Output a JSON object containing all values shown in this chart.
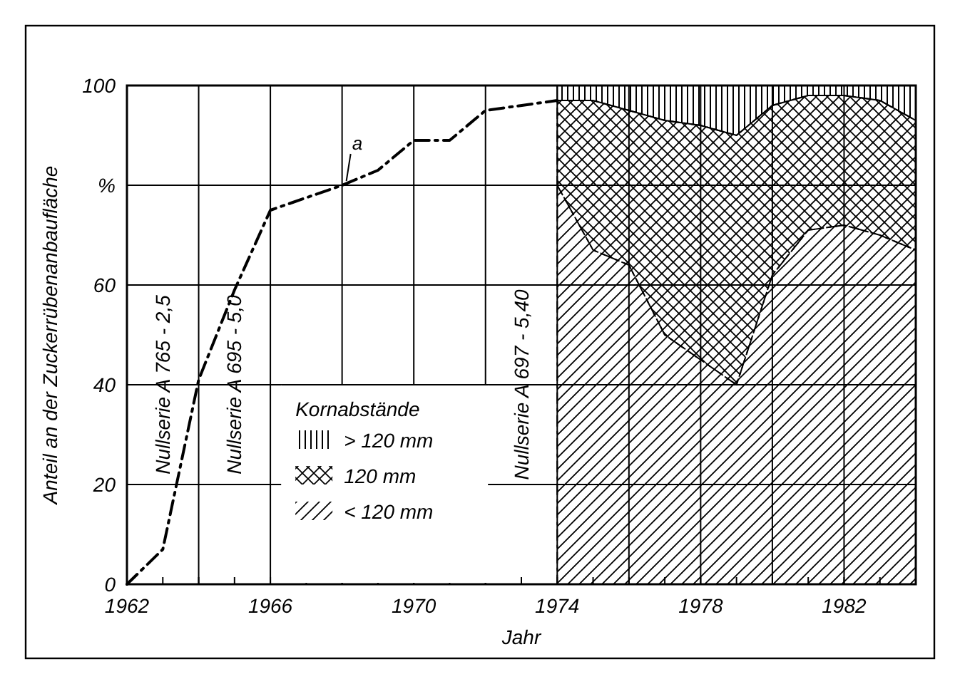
{
  "chart_data": {
    "type": "area",
    "stacked": true,
    "xlabel": "Jahr",
    "ylabel": "Anteil an der Zuckerrübenanbaufläche",
    "legend_title": "Kornabstände",
    "legend": "bottom",
    "grid": true,
    "xlim": [
      1962,
      1984
    ],
    "ylim": [
      0,
      100
    ],
    "xticks": [
      1962,
      {
        "value": 1964,
        "label": null
      },
      1966,
      {
        "value": 1968,
        "label": null
      },
      1970,
      {
        "value": 1972,
        "label": null
      },
      1974,
      {
        "value": 1976,
        "label": null
      },
      1978,
      {
        "value": 1980,
        "label": null
      },
      1982,
      {
        "value": 1984,
        "label": null
      }
    ],
    "yticks": [
      0,
      20,
      40,
      60,
      {
        "value": 80,
        "label": "%"
      },
      100
    ],
    "x": [
      1974,
      1975,
      1976,
      1977,
      1978,
      1979,
      1980,
      1981,
      1982,
      1983,
      1984
    ],
    "series": [
      {
        "name": "< 120 mm",
        "color": "#000000",
        "values": [
          80,
          67,
          64,
          50,
          45,
          40,
          62,
          71,
          72,
          70,
          67
        ]
      },
      {
        "name": "120 mm",
        "color": "#000000",
        "values": [
          17,
          30,
          31,
          43,
          47,
          50,
          34,
          27,
          26,
          27,
          26
        ]
      },
      {
        "name": "> 120 mm",
        "color": "#000000",
        "values": [
          3,
          3,
          5,
          7,
          8,
          10,
          4,
          2,
          2,
          3,
          7
        ]
      },
      {
        "name": "a",
        "type": "line",
        "line_style": "dashed",
        "color": "#000000",
        "x": [
          1962,
          1963,
          1964,
          1965,
          1966,
          1968,
          1969,
          1970,
          1971,
          1972,
          1974
        ],
        "values": [
          0,
          7,
          41,
          59,
          75,
          80,
          83,
          89,
          89,
          95,
          97
        ]
      }
    ],
    "annotations": [
      "Nullserie  A 765 - 2,5",
      "Nullserie A 695 - 5,0",
      "Nullserie  A 697 - 5,40"
    ]
  }
}
